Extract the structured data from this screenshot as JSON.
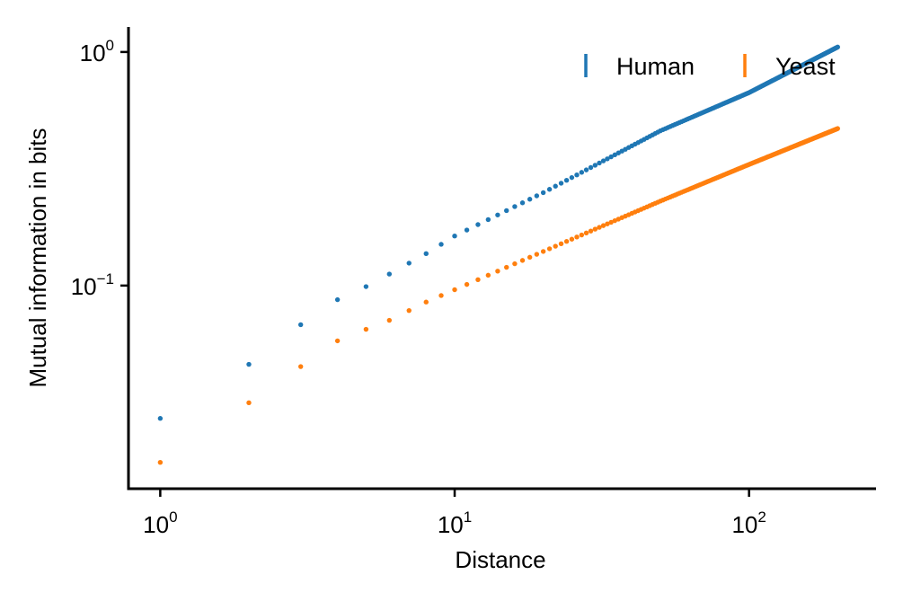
{
  "chart_data": {
    "type": "scatter",
    "title": "",
    "xlabel": "Distance",
    "ylabel": "Mutual information in bits",
    "xscale": "log",
    "yscale": "log",
    "xlim": [
      0.78,
      270
    ],
    "ylim": [
      0.0135,
      1.28
    ],
    "xticks": [
      {
        "value": 1,
        "base": "10",
        "exp": "0"
      },
      {
        "value": 10,
        "base": "10",
        "exp": "1"
      },
      {
        "value": 100,
        "base": "10",
        "exp": "2"
      }
    ],
    "yticks": [
      {
        "value": 0.1,
        "base": "10",
        "exp": "−1"
      },
      {
        "value": 1,
        "base": "10",
        "exp": "0"
      }
    ],
    "grid": false,
    "legend_position": "top-right",
    "x_range": [
      1,
      200
    ],
    "series": [
      {
        "name": "Human",
        "color": "#1f77b4",
        "anchors": {
          "x": [
            1,
            2,
            3,
            4,
            5,
            6,
            8,
            10,
            20,
            50,
            100,
            200
          ],
          "y": [
            0.027,
            0.046,
            0.068,
            0.087,
            0.099,
            0.112,
            0.137,
            0.163,
            0.25,
            0.46,
            0.67,
            1.05
          ]
        }
      },
      {
        "name": "Yeast",
        "color": "#ff7f0e",
        "anchors": {
          "x": [
            1,
            2,
            3,
            4,
            5,
            6,
            8,
            10,
            20,
            50,
            100,
            200
          ],
          "y": [
            0.0175,
            0.0315,
            0.045,
            0.058,
            0.065,
            0.071,
            0.085,
            0.096,
            0.14,
            0.23,
            0.33,
            0.47
          ]
        }
      }
    ]
  }
}
